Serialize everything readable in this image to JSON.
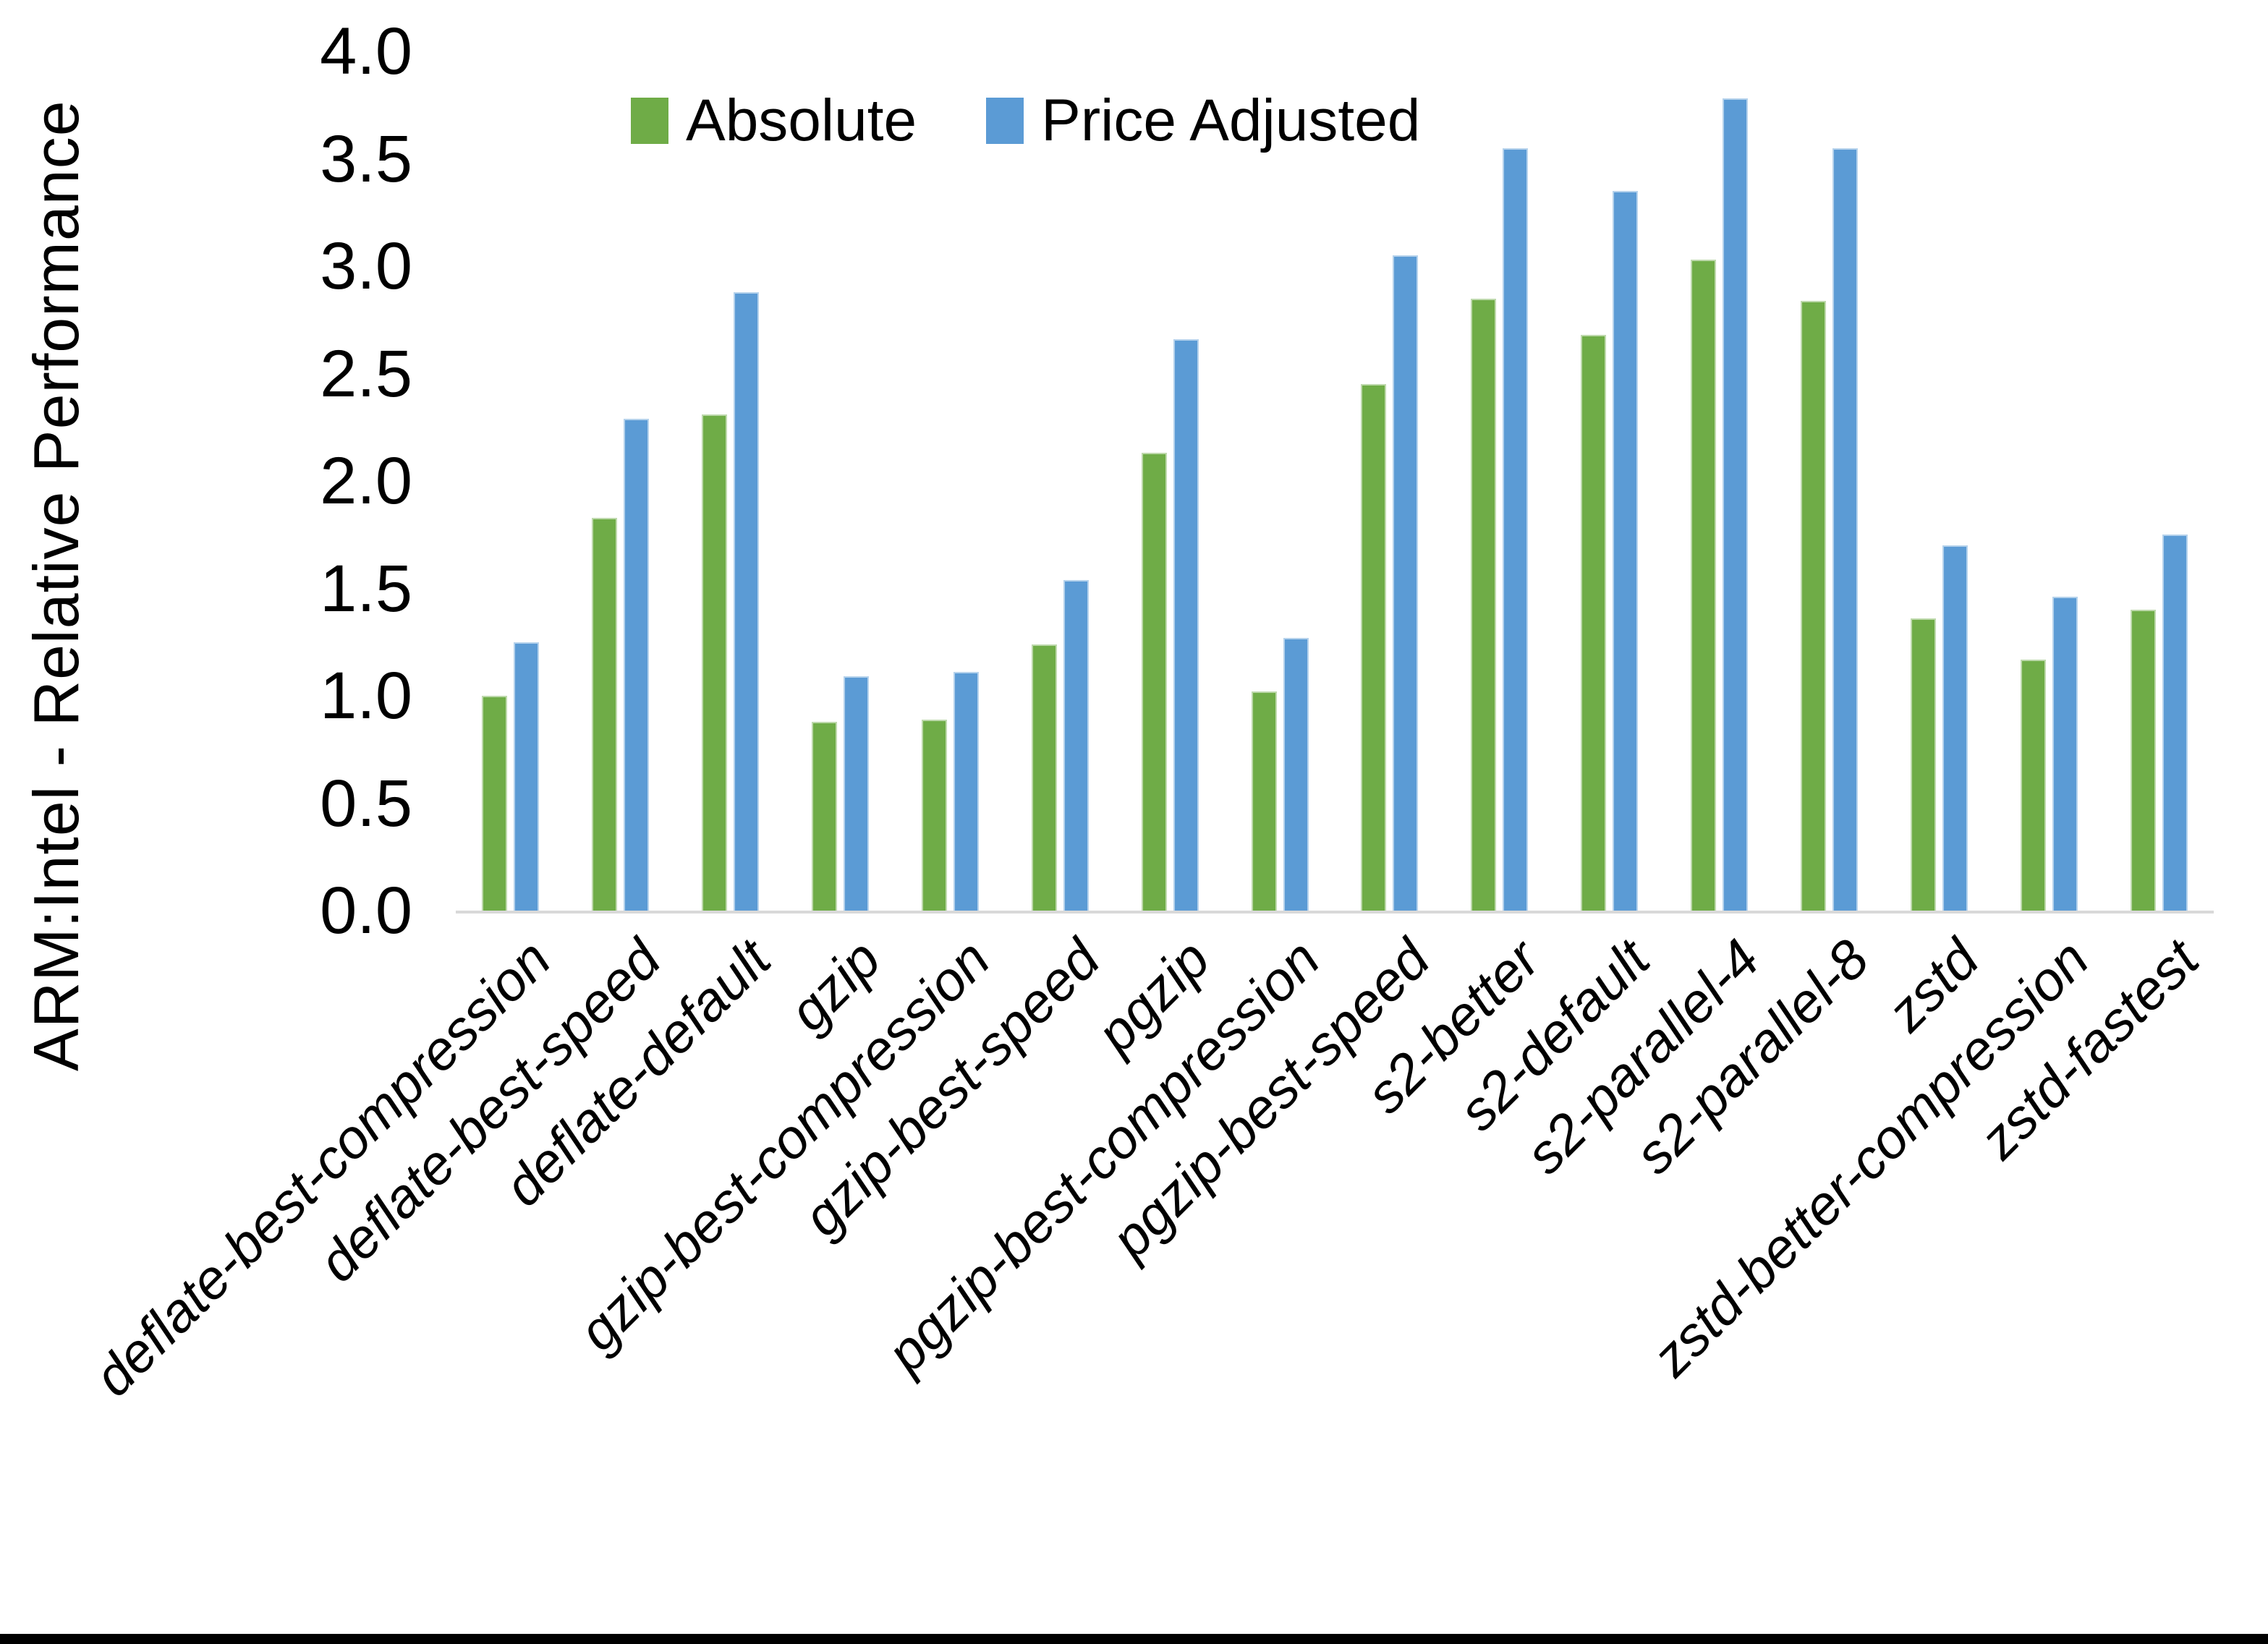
{
  "chart_data": {
    "type": "bar",
    "title": "",
    "xlabel": "",
    "ylabel": "ARM:Intel - Relative Performance",
    "ylim": [
      0,
      4
    ],
    "ytick_step": 0.5,
    "yticks_top_to_bottom": [
      "4.0",
      "3.5",
      "3.0",
      "2.5",
      "2.0",
      "1.5",
      "1.0",
      "0.5",
      "0.0"
    ],
    "grid": false,
    "legend_position": "top-center",
    "axis_line_color": "#D9D9D9",
    "background_color": "#FFFFFF",
    "categories": [
      "deflate-best-compression",
      "deflate-best-speed",
      "deflate-default",
      "gzip",
      "gzip-best-compression",
      "gzip-best-speed",
      "pgzip",
      "pgzip-best-compression",
      "pgzip-best-speed",
      "s2-better",
      "s2-default",
      "s2-parallel-4",
      "s2-parallel-8",
      "zstd",
      "zstd-better-compression",
      "zstd-fastest"
    ],
    "series": [
      {
        "name": "Absolute",
        "color": "#6FAC47",
        "values": [
          1.0,
          1.83,
          2.31,
          0.88,
          0.89,
          1.24,
          2.13,
          1.02,
          2.45,
          2.85,
          2.68,
          3.03,
          2.84,
          1.36,
          1.17,
          1.4
        ]
      },
      {
        "name": "Price Adjusted",
        "color": "#5B9BD5",
        "values": [
          1.25,
          2.29,
          2.88,
          1.09,
          1.11,
          1.54,
          2.66,
          1.27,
          3.05,
          3.55,
          3.35,
          3.78,
          3.55,
          1.7,
          1.46,
          1.75
        ]
      }
    ]
  },
  "window": {
    "bottom_strip_color": "#000000"
  }
}
